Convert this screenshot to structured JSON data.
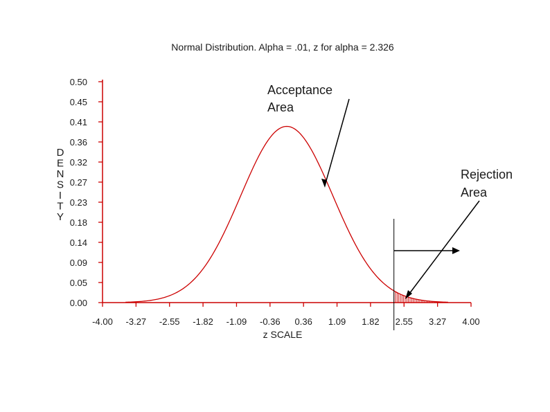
{
  "chart_data": {
    "type": "area",
    "title": "Normal Distribution. Alpha = .01, z for alpha = 2.326",
    "xlabel": "z SCALE",
    "ylabel": "DENSITY",
    "xlim": [
      -4.0,
      4.0
    ],
    "ylim": [
      0.0,
      0.5
    ],
    "x_ticks": [
      "-4.00",
      "-3.27",
      "-2.55",
      "-1.82",
      "-1.09",
      "-0.36",
      "0.36",
      "1.09",
      "1.82",
      "2.55",
      "3.27",
      "4.00"
    ],
    "y_ticks": [
      "0.00",
      "0.05",
      "0.09",
      "0.14",
      "0.18",
      "0.23",
      "0.27",
      "0.32",
      "0.36",
      "0.41",
      "0.45",
      "0.50"
    ],
    "series": [
      {
        "x": [
          -3.5,
          -3.0,
          -2.5,
          -2.0,
          -1.5,
          -1.0,
          -0.5,
          0.0,
          0.5,
          1.0,
          1.5,
          2.0,
          2.326,
          2.5,
          3.0,
          3.5
        ],
        "y": [
          0.001,
          0.004,
          0.018,
          0.054,
          0.13,
          0.242,
          0.352,
          0.399,
          0.352,
          0.242,
          0.13,
          0.054,
          0.027,
          0.018,
          0.004,
          0.001
        ]
      }
    ],
    "critical_z": 2.326,
    "shaded_region": [
      2.326,
      3.5
    ],
    "annotations": {
      "acceptance": [
        "Acceptance",
        "Area"
      ],
      "rejection": [
        "Rejection",
        "Area"
      ]
    },
    "curve_color": "#cc0000",
    "axis_color": "#cc0000",
    "grid": false
  }
}
